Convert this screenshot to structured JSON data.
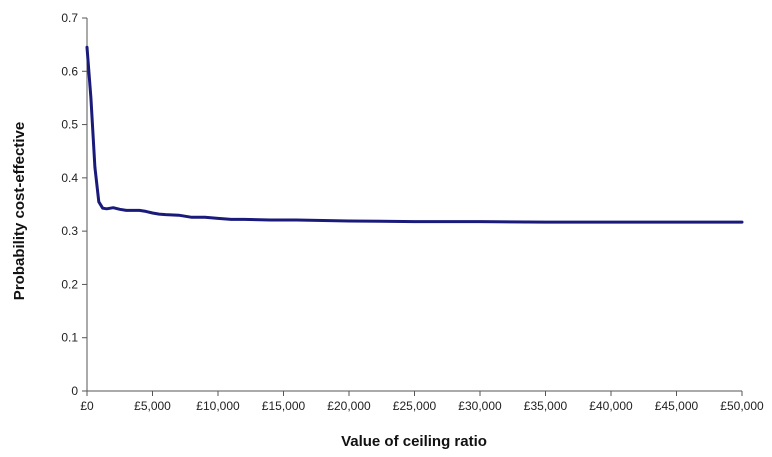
{
  "chart_data": {
    "type": "line",
    "title": "",
    "xlabel": "Value of ceiling ratio",
    "ylabel": "Probability cost-effective",
    "xlim": [
      0,
      50000
    ],
    "ylim": [
      0,
      0.7
    ],
    "x_ticks": [
      0,
      5000,
      10000,
      15000,
      20000,
      25000,
      30000,
      35000,
      40000,
      45000,
      50000
    ],
    "x_tick_labels": [
      "£0",
      "£5,000",
      "£10,000",
      "£15,000",
      "£20,000",
      "£25,000",
      "£30,000",
      "£35,000",
      "£40,000",
      "£45,000",
      "£50,000"
    ],
    "y_ticks": [
      0,
      0.1,
      0.2,
      0.3,
      0.4,
      0.5,
      0.6,
      0.7
    ],
    "y_tick_labels": [
      "0",
      "0.1",
      "0.2",
      "0.3",
      "0.4",
      "0.5",
      "0.6",
      "0.7"
    ],
    "grid": false,
    "legend": "none",
    "line_color": "#1a1a7a",
    "series": [
      {
        "x": [
          0,
          300,
          600,
          900,
          1200,
          1500,
          2000,
          2500,
          3000,
          3500,
          4000,
          4500,
          5000,
          5500,
          6000,
          7000,
          8000,
          9000,
          10000,
          11000,
          12000,
          14000,
          16000,
          18000,
          20000,
          25000,
          30000,
          35000,
          40000,
          45000,
          50000
        ],
        "values": [
          0.645,
          0.55,
          0.42,
          0.355,
          0.343,
          0.342,
          0.344,
          0.341,
          0.339,
          0.339,
          0.339,
          0.337,
          0.334,
          0.332,
          0.331,
          0.33,
          0.326,
          0.326,
          0.324,
          0.322,
          0.322,
          0.321,
          0.321,
          0.32,
          0.319,
          0.318,
          0.318,
          0.317,
          0.317,
          0.317,
          0.317
        ]
      }
    ]
  }
}
